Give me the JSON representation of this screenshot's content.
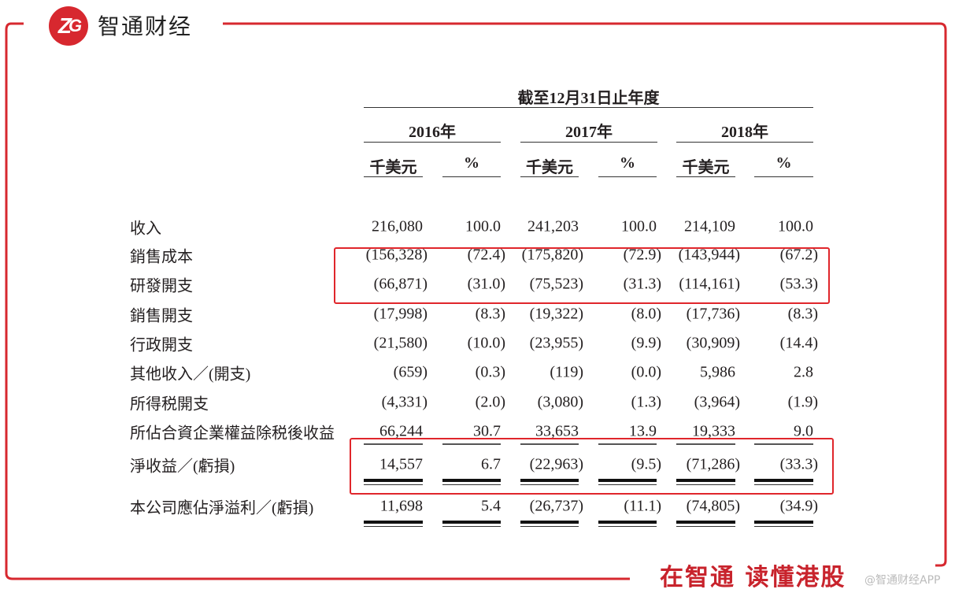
{
  "brand": {
    "logo_mark": "ZT",
    "name": "智通财经",
    "slogan": "在智通  读懂港股",
    "watermark": "@智通财经APP"
  },
  "colors": {
    "accent": "#d7282f",
    "highlight_box": "#e0262b"
  },
  "table": {
    "period_header": "截至12月31日止年度",
    "years": [
      "2016年",
      "2017年",
      "2018年"
    ],
    "subheaders": [
      "千美元",
      "%"
    ],
    "rows": [
      {
        "label": "收入",
        "values": [
          "216,080",
          "100.0",
          "241,203",
          "100.0",
          "214,109",
          "100.0"
        ]
      },
      {
        "label": "銷售成本",
        "values": [
          "(156,328)",
          "(72.4)",
          "(175,820)",
          "(72.9)",
          "(143,944)",
          "(67.2)"
        ]
      },
      {
        "label": "研發開支",
        "values": [
          "(66,871)",
          "(31.0)",
          "(75,523)",
          "(31.3)",
          "(114,161)",
          "(53.3)"
        ]
      },
      {
        "label": "銷售開支",
        "values": [
          "(17,998)",
          "(8.3)",
          "(19,322)",
          "(8.0)",
          "(17,736)",
          "(8.3)"
        ]
      },
      {
        "label": "行政開支",
        "values": [
          "(21,580)",
          "(10.0)",
          "(23,955)",
          "(9.9)",
          "(30,909)",
          "(14.4)"
        ]
      },
      {
        "label": "其他收入／(開支)",
        "values": [
          "(659)",
          "(0.3)",
          "(119)",
          "(0.0)",
          "5,986",
          "2.8"
        ]
      },
      {
        "label": "所得税開支",
        "values": [
          "(4,331)",
          "(2.0)",
          "(3,080)",
          "(1.3)",
          "(3,964)",
          "(1.9)"
        ]
      },
      {
        "label": "所佔合資企業權益除税後收益",
        "values": [
          "66,244",
          "30.7",
          "33,653",
          "13.9",
          "19,333",
          "9.0"
        ]
      },
      {
        "label": "淨收益／(虧損)",
        "values": [
          "14,557",
          "6.7",
          "(22,963)",
          "(9.5)",
          "(71,286)",
          "(33.3)"
        ]
      },
      {
        "label": "本公司應佔淨溢利／(虧損)",
        "values": [
          "11,698",
          "5.4",
          "(26,737)",
          "(11.1)",
          "(74,805)",
          "(34.9)"
        ]
      }
    ]
  }
}
